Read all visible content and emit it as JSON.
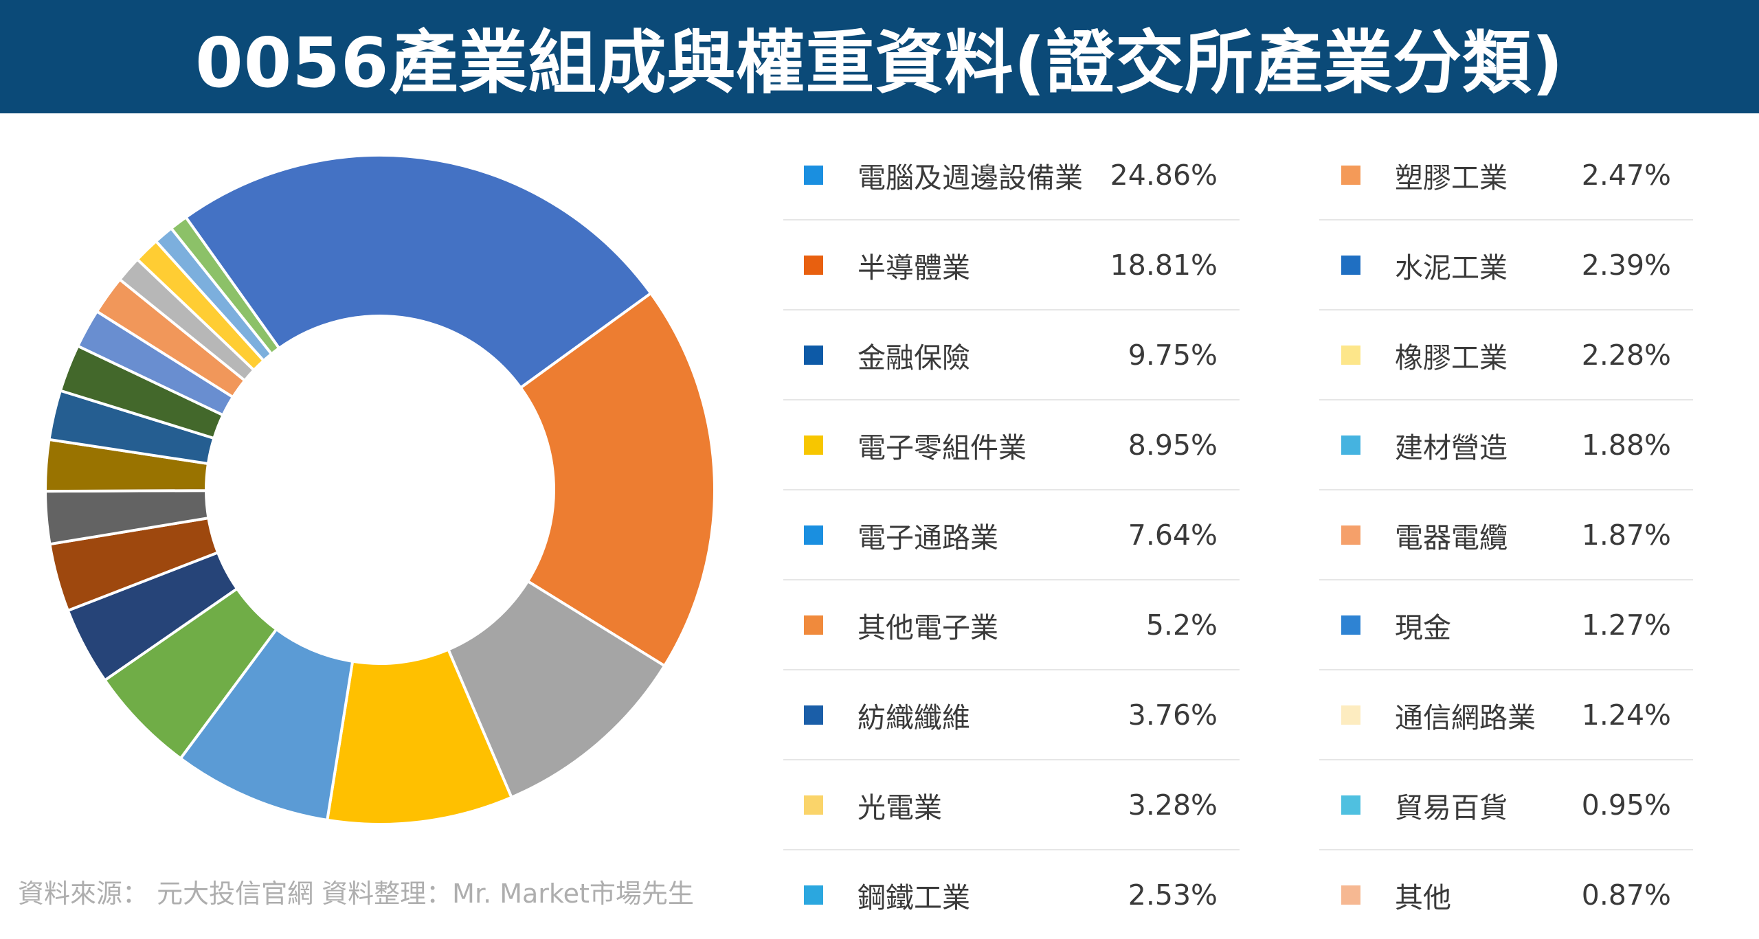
{
  "title": "0056產業組成與權重資料(證交所產業分類)",
  "source_note": "資料來源：  元大投信官網    資料整理：Mr. Market市場先生",
  "chart_data": {
    "type": "pie",
    "variant": "donut",
    "title": "0056產業組成與權重資料(證交所產業分類)",
    "unit": "%",
    "categories": [
      "電腦及週邊設備業",
      "半導體業",
      "金融保險",
      "電子零組件業",
      "電子通路業",
      "其他電子業",
      "紡織纖維",
      "光電業",
      "鋼鐵工業",
      "塑膠工業",
      "水泥工業",
      "橡膠工業",
      "建材營造",
      "電器電纜",
      "現金",
      "通信網路業",
      "貿易百貨",
      "其他"
    ],
    "values": [
      24.86,
      18.81,
      9.75,
      8.95,
      7.64,
      5.2,
      3.76,
      3.28,
      2.53,
      2.47,
      2.39,
      2.28,
      1.88,
      1.87,
      1.27,
      1.24,
      0.95,
      0.87
    ],
    "labels": [
      "24.86%",
      "18.81%",
      "9.75%",
      "8.95%",
      "7.64%",
      "5.2%",
      "3.76%",
      "3.28%",
      "2.53%",
      "2.47%",
      "2.39%",
      "2.28%",
      "1.88%",
      "1.87%",
      "1.27%",
      "1.24%",
      "0.95%",
      "0.87%"
    ],
    "slice_colors": [
      "#4472c4",
      "#ed7d31",
      "#a5a5a5",
      "#ffc000",
      "#5b9bd5",
      "#70ad47",
      "#264478",
      "#9e480e",
      "#636363",
      "#997300",
      "#255e91",
      "#43682b",
      "#698ed0",
      "#f1975a",
      "#b7b7b7",
      "#ffcd33",
      "#7cafdd",
      "#8cc168"
    ],
    "legend_colors": [
      "#1a8fe0",
      "#e8600f",
      "#0d5aa7",
      "#f7c600",
      "#1a8fe0",
      "#f08a3c",
      "#1a5ea8",
      "#fad46a",
      "#2ba7df",
      "#f49a58",
      "#1f6fc2",
      "#fde68a",
      "#45b3e0",
      "#f5a06a",
      "#2e83d3",
      "#fdecc0",
      "#4fc0e0",
      "#f6b892"
    ],
    "legend_placement": "right"
  }
}
